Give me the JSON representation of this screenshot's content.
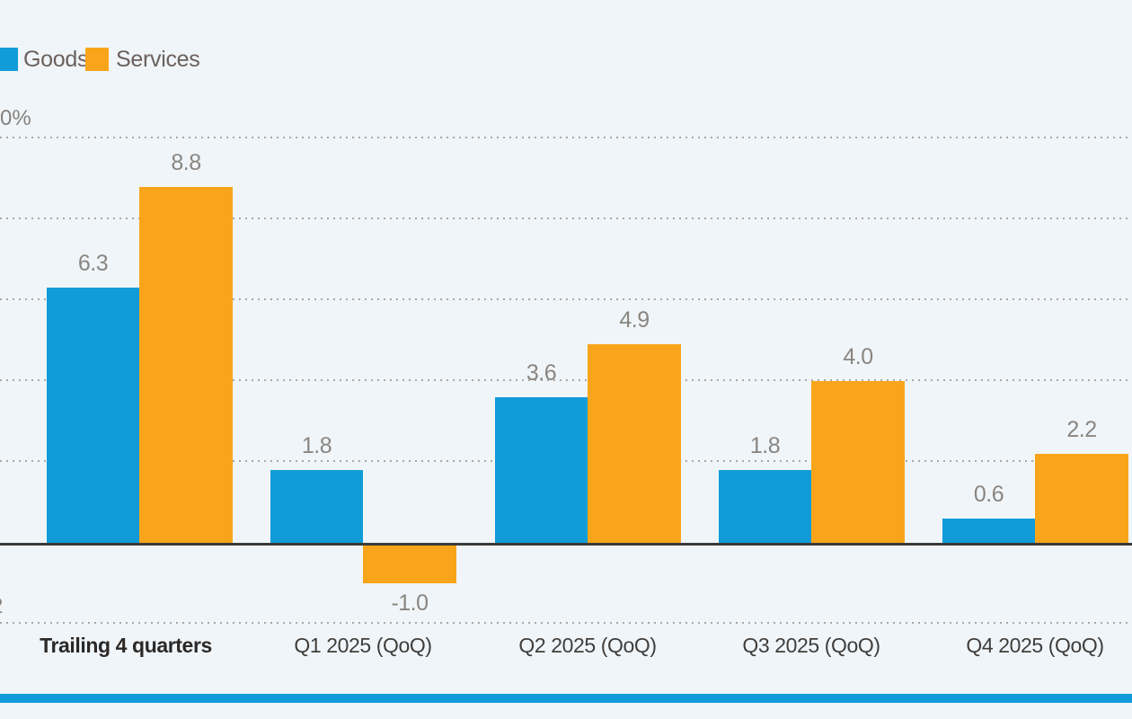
{
  "background": "#F0F5F9",
  "colors": {
    "goods": "#119CD9",
    "services": "#F9A51B",
    "axis_line": "#3B3B39",
    "gridline": "#ACA7A3",
    "value_label": "#8A8580",
    "category_label": "#403D3A",
    "category_label_bold": "#2B2826",
    "legend_label": "#6B615C",
    "y_axis_label": "#87827E",
    "bottom_stripe": "#119CD9"
  },
  "legend": {
    "items": [
      {
        "label": "Goods",
        "color_key": "goods"
      },
      {
        "label": "Services",
        "color_key": "services"
      }
    ]
  },
  "y_axis": {
    "top_label": "0%",
    "bottom_partial_label": "2"
  },
  "chart_data": {
    "type": "bar",
    "categories": [
      "Trailing 4 quarters",
      "Q1 2025 (QoQ)",
      "Q2 2025 (QoQ)",
      "Q3 2025 (QoQ)",
      "Q4 2025 (QoQ)"
    ],
    "series": [
      {
        "name": "Goods",
        "values": [
          6.3,
          1.8,
          3.6,
          1.8,
          0.6
        ],
        "labels": [
          "6.3",
          "1.8",
          "3.6",
          "1.8",
          "0.6"
        ]
      },
      {
        "name": "Services",
        "values": [
          8.8,
          -1.0,
          4.9,
          4.0,
          2.2
        ],
        "labels": [
          "8.8",
          "-1.0",
          "4.9",
          "4.0",
          "2.2"
        ]
      }
    ],
    "title": "",
    "xlabel": "",
    "ylabel": "%",
    "ylim": [
      -2,
      10
    ],
    "gridline_step": 2,
    "grid": "dotted-horizontal",
    "legend_position": "top-left",
    "value_labels_shown": true,
    "bold_categories": [
      "Trailing 4 quarters"
    ]
  }
}
